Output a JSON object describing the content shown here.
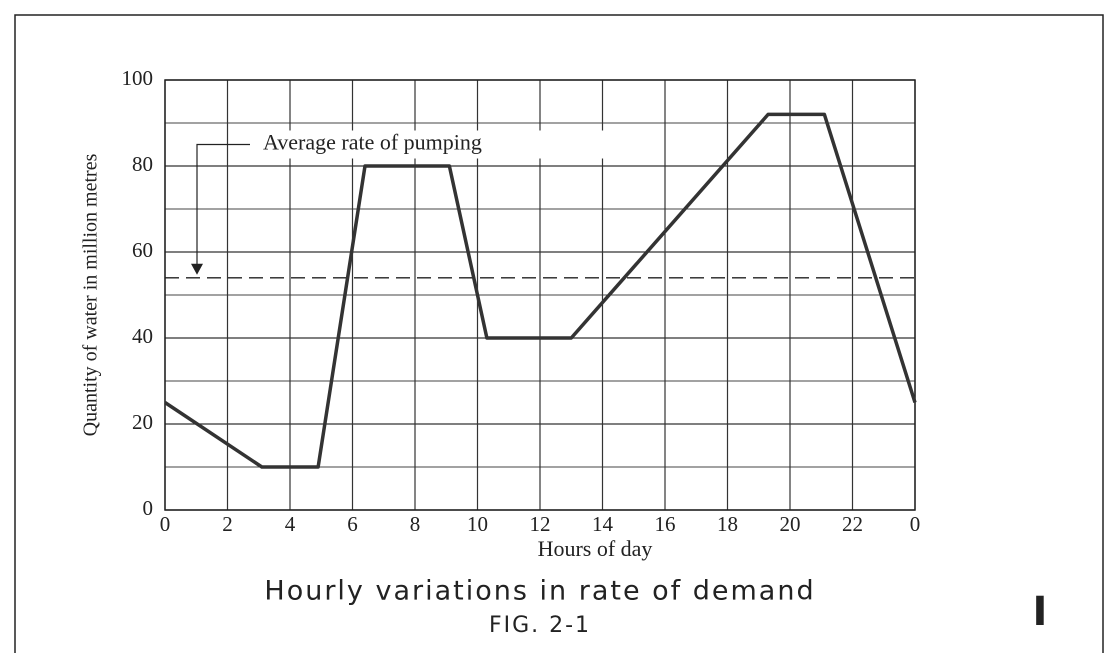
{
  "chart_data": {
    "type": "line",
    "title": "Hourly variations in rate of demand",
    "subtitle": "FIG. 2-1",
    "x_label": "Hours of day",
    "y_label": "Quantity of water in million metres",
    "annotation": {
      "text": "Average rate of pumping",
      "value": 54
    },
    "corner_mark": "I",
    "x": [
      0,
      3.1,
      4.9,
      6.4,
      9.1,
      10.3,
      13.0,
      19.3,
      21.1,
      24
    ],
    "series": [
      {
        "name": "Rate of demand",
        "color": "#333333",
        "values": [
          25,
          10,
          10,
          80,
          80,
          40,
          40,
          92,
          92,
          25
        ]
      }
    ],
    "xlim": [
      0,
      24
    ],
    "xticks": [
      0,
      2,
      4,
      6,
      8,
      10,
      12,
      14,
      16,
      18,
      20,
      22,
      {
        "value": 24,
        "label": "0"
      }
    ],
    "ylim": [
      0,
      100
    ],
    "yticks": [
      0,
      20,
      40,
      60,
      80,
      100
    ],
    "grid": true
  }
}
